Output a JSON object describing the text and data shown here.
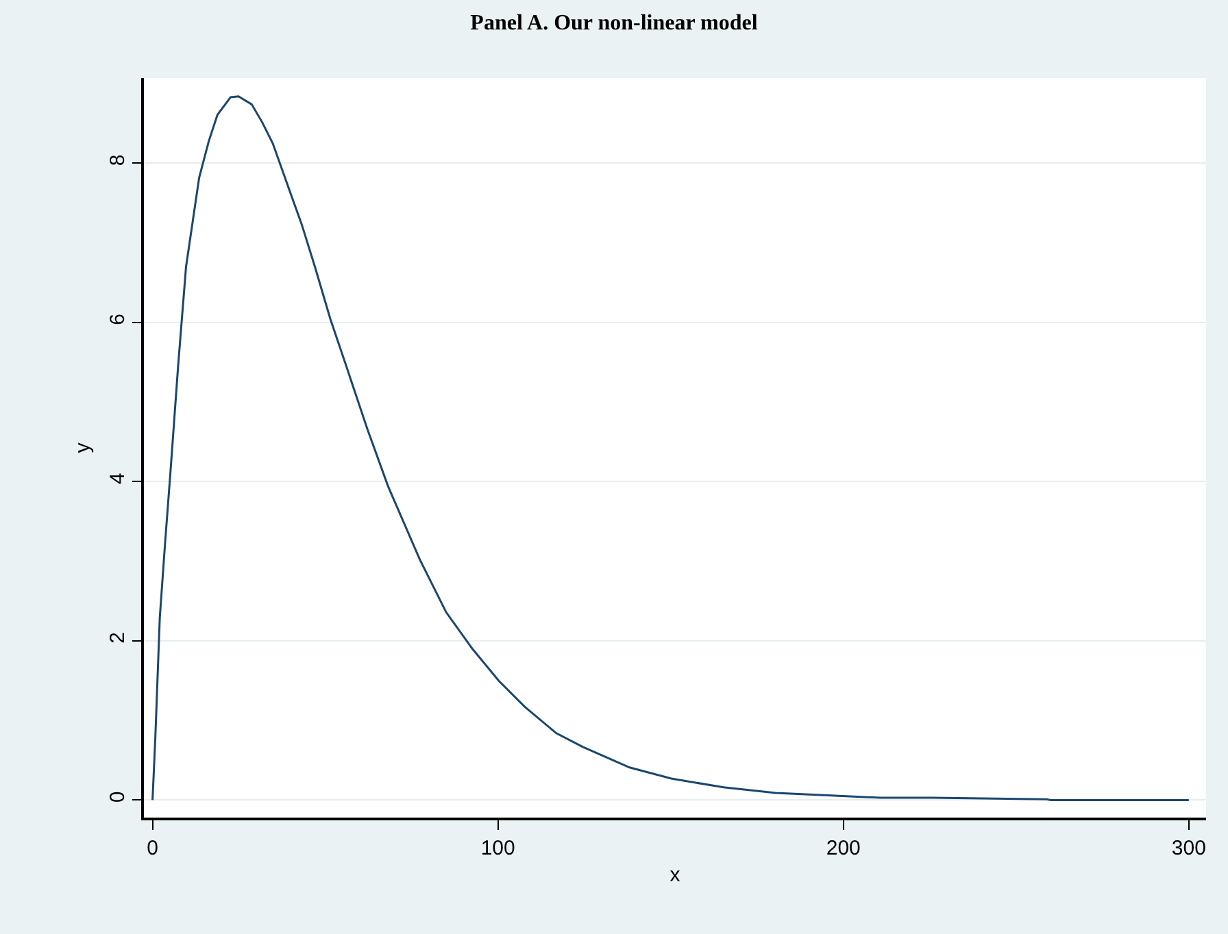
{
  "chart_data": {
    "type": "line",
    "title": "Panel A. Our non-linear model",
    "xlabel": "x",
    "ylabel": "y",
    "x": [
      0,
      0.8,
      2.1,
      3.6,
      5.2,
      7.4,
      9.7,
      13.5,
      16.3,
      18.8,
      22.6,
      24.9,
      28.7,
      31.8,
      34.8,
      39.4,
      43.2,
      47.0,
      51.5,
      56.1,
      62.2,
      68.2,
      77.4,
      85.0,
      92.6,
      100.2,
      107.8,
      116.9,
      124.5,
      138.1,
      150.2,
      165.3,
      180.4,
      195.5,
      210.6,
      225.7,
      258.9,
      260,
      300
    ],
    "series": [
      {
        "color": "#1a476f",
        "values": [
          0,
          0.78,
          2.29,
          3.21,
          4.13,
          5.45,
          6.7,
          7.82,
          8.28,
          8.61,
          8.83,
          8.84,
          8.74,
          8.51,
          8.25,
          7.69,
          7.23,
          6.7,
          6.04,
          5.45,
          4.66,
          3.94,
          3.02,
          2.36,
          1.9,
          1.5,
          1.17,
          0.84,
          0.67,
          0.41,
          0.27,
          0.16,
          0.09,
          0.06,
          0.03,
          0.03,
          0.01,
          0,
          0
        ]
      }
    ],
    "xlim": [
      -2.5,
      305
    ],
    "ylim": [
      -0.22,
      9.07
    ],
    "xticks": [
      0,
      100,
      200,
      300
    ],
    "yticks": [
      0,
      2,
      4,
      6,
      8
    ],
    "grid": "y",
    "legend": false,
    "marker": "none",
    "line_style": "solid"
  }
}
